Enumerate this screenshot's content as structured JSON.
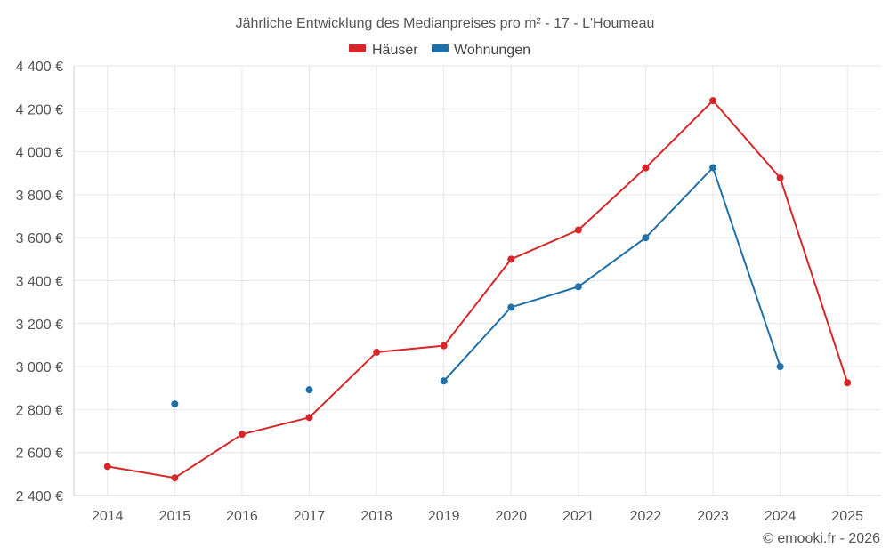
{
  "chart_data": {
    "type": "line",
    "title": "Jährliche Entwicklung des Medianpreises pro m² - 17 - L'Houmeau",
    "xlabel": "",
    "ylabel": "",
    "categories": [
      "2014",
      "2015",
      "2016",
      "2017",
      "2018",
      "2019",
      "2020",
      "2021",
      "2022",
      "2023",
      "2024",
      "2025"
    ],
    "ylim": [
      2400,
      4400
    ],
    "yticks": [
      2400,
      2600,
      2800,
      3000,
      3200,
      3400,
      3600,
      3800,
      4000,
      4200,
      4400
    ],
    "ytick_labels": [
      "2 400 €",
      "2 600 €",
      "2 800 €",
      "3 000 €",
      "3 200 €",
      "3 400 €",
      "3 600 €",
      "3 800 €",
      "4 000 €",
      "4 200 €",
      "4 400 €"
    ],
    "grid": true,
    "legend_position": "top-center",
    "series": [
      {
        "name": "Häuser",
        "color": "#d62728",
        "values": [
          2535,
          2482,
          2685,
          2763,
          3067,
          3097,
          3500,
          3636,
          3925,
          4238,
          3878,
          2925
        ]
      },
      {
        "name": "Wohnungen",
        "color": "#1f6fa8",
        "values": [
          null,
          2826,
          null,
          2892,
          null,
          2933,
          3276,
          3372,
          3600,
          3926,
          3000,
          null
        ]
      }
    ]
  },
  "credit": "© emooki.fr - 2026"
}
